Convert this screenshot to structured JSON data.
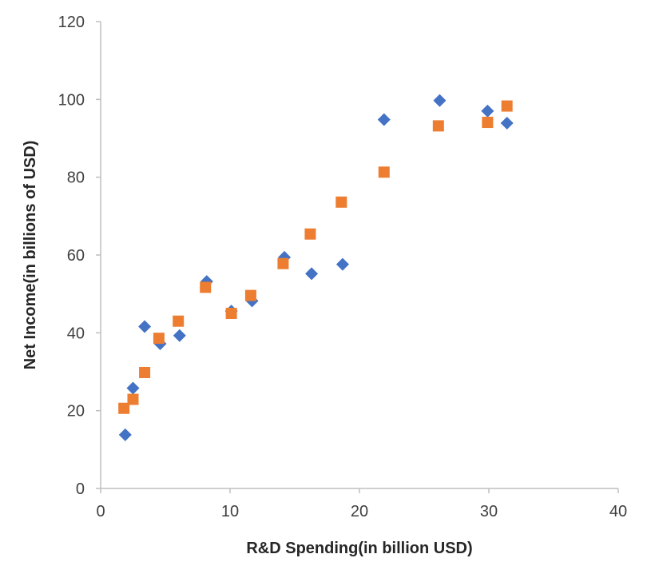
{
  "chart_data": {
    "type": "scatter",
    "title": "",
    "xlabel": "R&D Spending(in billion USD)",
    "ylabel": "Net Income(in billions of USD)",
    "xlim": [
      0,
      40
    ],
    "ylim": [
      0,
      120
    ],
    "xticks": [
      0,
      10,
      20,
      30,
      40
    ],
    "yticks": [
      0,
      20,
      40,
      60,
      80,
      100,
      120
    ],
    "grid": false,
    "legend": "none",
    "series": [
      {
        "marker": "diamond",
        "color": "#4472C4",
        "points": [
          {
            "x": 1.9,
            "y": 13.8
          },
          {
            "x": 2.5,
            "y": 25.8
          },
          {
            "x": 3.4,
            "y": 41.6
          },
          {
            "x": 4.6,
            "y": 37.2
          },
          {
            "x": 6.1,
            "y": 39.3
          },
          {
            "x": 8.2,
            "y": 53.2
          },
          {
            "x": 10.1,
            "y": 45.6
          },
          {
            "x": 11.7,
            "y": 48.2
          },
          {
            "x": 14.2,
            "y": 59.4
          },
          {
            "x": 16.3,
            "y": 55.2
          },
          {
            "x": 18.7,
            "y": 57.6
          },
          {
            "x": 21.9,
            "y": 94.8
          },
          {
            "x": 26.2,
            "y": 99.7
          },
          {
            "x": 29.9,
            "y": 97.0
          },
          {
            "x": 31.4,
            "y": 93.9
          }
        ]
      },
      {
        "marker": "square",
        "color": "#ED7D31",
        "points": [
          {
            "x": 1.8,
            "y": 20.6
          },
          {
            "x": 2.5,
            "y": 22.9
          },
          {
            "x": 3.4,
            "y": 29.8
          },
          {
            "x": 4.5,
            "y": 38.6
          },
          {
            "x": 6.0,
            "y": 43.0
          },
          {
            "x": 8.1,
            "y": 51.7
          },
          {
            "x": 10.1,
            "y": 45.0
          },
          {
            "x": 11.6,
            "y": 49.6
          },
          {
            "x": 14.1,
            "y": 57.8
          },
          {
            "x": 16.2,
            "y": 65.4
          },
          {
            "x": 18.6,
            "y": 73.6
          },
          {
            "x": 21.9,
            "y": 81.3
          },
          {
            "x": 26.1,
            "y": 93.2
          },
          {
            "x": 29.9,
            "y": 94.1
          },
          {
            "x": 31.4,
            "y": 98.3
          }
        ]
      }
    ]
  }
}
